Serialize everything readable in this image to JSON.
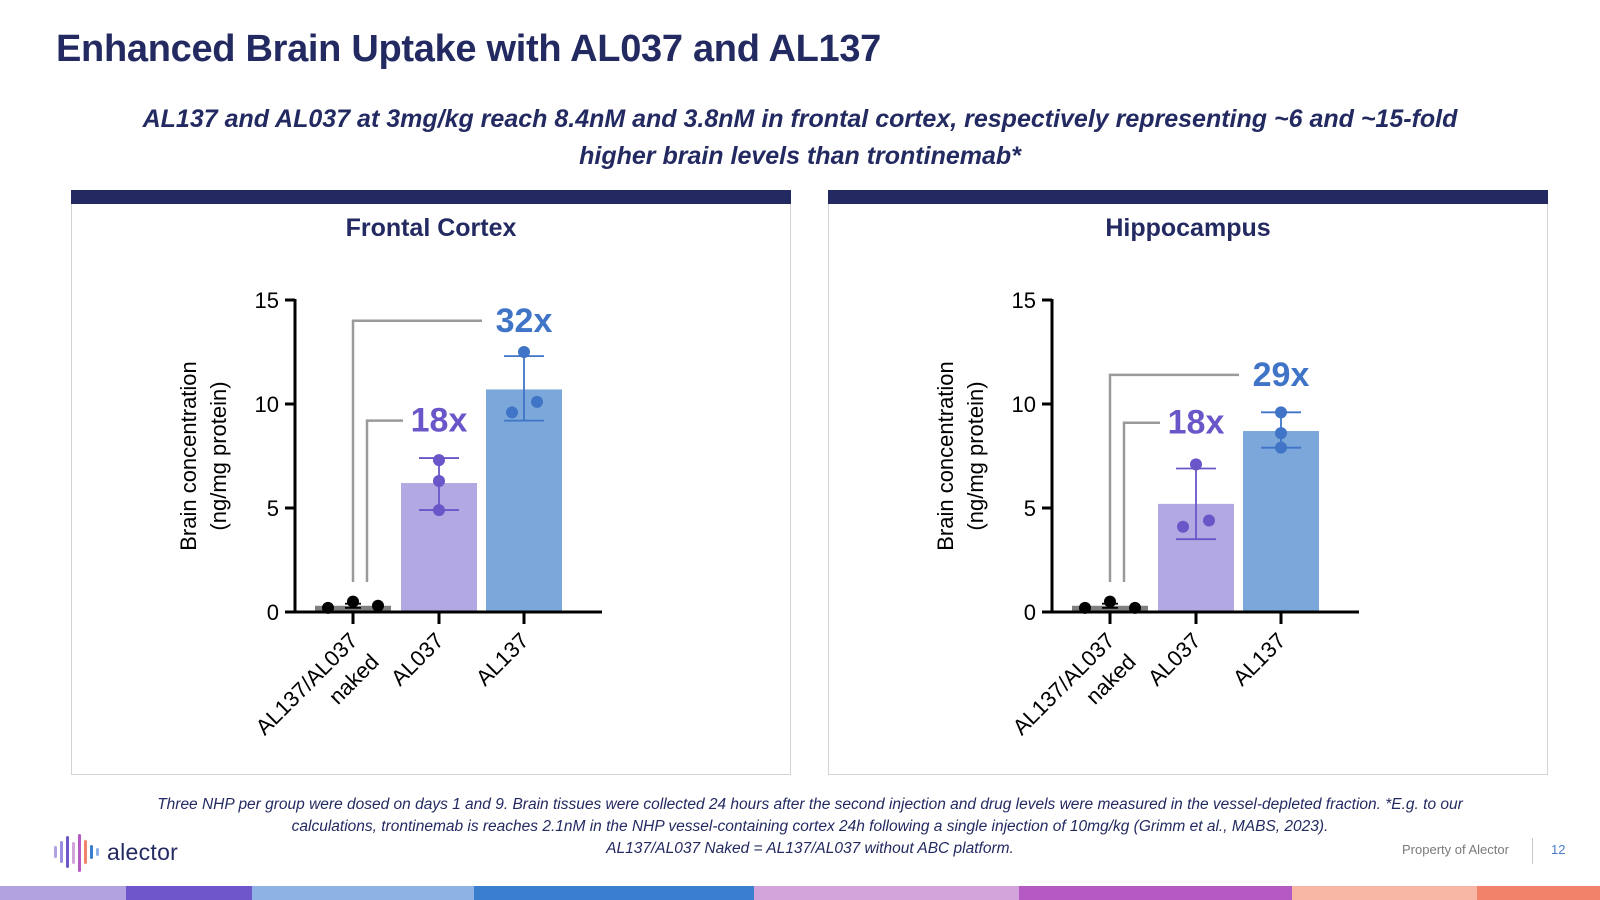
{
  "slide": {
    "title": "Enhanced Brain Uptake with AL037 and AL137",
    "subtitle_line1": "AL137 and AL037 at 3mg/kg reach 8.4nM and 3.8nM in frontal cortex, respectively representing ~6 and ~15-fold",
    "subtitle_line2": "higher brain levels than trontinemab*",
    "footnote_line1": "Three NHP per group were dosed on days 1 and 9. Brain tissues were collected 24 hours after the second injection and drug levels were measured in the vessel-depleted fraction. *E.g. to our",
    "footnote_line2": "calculations, trontinemab is reaches 2.1nM in the NHP vessel-containing cortex 24h following a single injection of 10mg/kg (Grimm et al., MABS, 2023).",
    "footnote_line3": "AL137/AL037 Naked = AL137/AL037 without ABC platform.",
    "logo_text": "alector",
    "property_text": "Property of Alector",
    "page_number": "12"
  },
  "colors": {
    "navy": "#232a61",
    "naked_bar": "#7f7f7f",
    "al037_bar": "#b3a9e2",
    "al037_accent": "#6b56c9",
    "al137_bar": "#7ba7da",
    "al137_accent": "#3f74c7",
    "stripe": [
      "#b0a3e0",
      "#6f57cb",
      "#8fb2e4",
      "#3a7ed0",
      "#d3a3db",
      "#b55ac2",
      "#f7b7a4",
      "#f2836b"
    ]
  },
  "chart_data": [
    {
      "type": "bar",
      "title": "Frontal Cortex",
      "ylabel_line1": "Brain concentration",
      "ylabel_line2": "(ng/mg protein)",
      "ylim": [
        0,
        15
      ],
      "yticks": [
        0,
        5,
        10,
        15
      ],
      "categories": [
        "AL137/AL037\nnaked",
        "AL037",
        "AL137"
      ],
      "values": [
        0.3,
        6.2,
        10.7
      ],
      "error_low": [
        0.2,
        4.9,
        9.2
      ],
      "error_high": [
        0.4,
        7.4,
        12.3
      ],
      "points": [
        [
          0.2,
          0.5,
          0.3
        ],
        [
          4.9,
          6.3,
          7.3
        ],
        [
          12.5,
          9.6,
          10.1
        ]
      ],
      "annotations": [
        {
          "label": "18x",
          "target": "AL037",
          "bracket_level": 9.2
        },
        {
          "label": "32x",
          "target": "AL137",
          "bracket_level": 14.0
        }
      ]
    },
    {
      "type": "bar",
      "title": "Hippocampus",
      "ylabel_line1": "Brain concentration",
      "ylabel_line2": "(ng/mg protein)",
      "ylim": [
        0,
        15
      ],
      "yticks": [
        0,
        5,
        10,
        15
      ],
      "categories": [
        "AL137/AL037\nnaked",
        "AL037",
        "AL137"
      ],
      "values": [
        0.3,
        5.2,
        8.7
      ],
      "error_low": [
        0.2,
        3.5,
        7.9
      ],
      "error_high": [
        0.4,
        6.9,
        9.6
      ],
      "points": [
        [
          0.2,
          0.5,
          0.2
        ],
        [
          4.1,
          7.1,
          4.4
        ],
        [
          9.6,
          8.6,
          7.9
        ]
      ],
      "annotations": [
        {
          "label": "18x",
          "target": "AL037",
          "bracket_level": 9.1
        },
        {
          "label": "29x",
          "target": "AL137",
          "bracket_level": 11.4
        }
      ]
    }
  ]
}
